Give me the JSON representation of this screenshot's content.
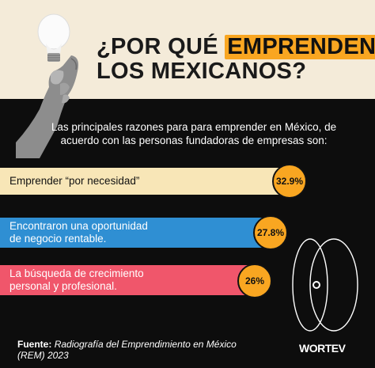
{
  "header": {
    "title_line1_plain": "¿POR QUÉ ",
    "title_line1_highlight": "EMPRENDEN",
    "title_line2": "LOS MEXICANOS?"
  },
  "intro_text": "Las principales razones para para emprender en México, de acuerdo con las personas fundadoras de empresas son:",
  "chart_data": {
    "type": "bar",
    "categories": [
      "Emprender “por necesidad”",
      "Encontraron una oportunidad de negocio rentable.",
      "La búsqueda de crecimiento personal y profesional."
    ],
    "values": [
      32.9,
      27.8,
      26
    ],
    "value_labels": [
      "32.9%",
      "27.8%",
      "26%"
    ],
    "bar_colors": [
      "#f8e6b7",
      "#2f8fd3",
      "#f0566b"
    ],
    "badge_color": "#f9a621"
  },
  "reasons": [
    {
      "lines": [
        "Emprender “por necesidad”"
      ]
    },
    {
      "lines": [
        "Encontraron una oportunidad",
        "de negocio rentable."
      ]
    },
    {
      "lines": [
        "La búsqueda de crecimiento",
        "personal y profesional."
      ]
    }
  ],
  "source": {
    "label": "Fuente:",
    "text": "Radiografía del Emprendimiento en México (REM) 2023"
  },
  "brand": "WORTEV",
  "colors": {
    "accent": "#f9a621",
    "background_top": "#f4ebd9",
    "background_bottom": "#0d0d0d"
  },
  "icons": [
    "light-bulb-icon",
    "hand-icon",
    "orbit-graphic-icon"
  ]
}
